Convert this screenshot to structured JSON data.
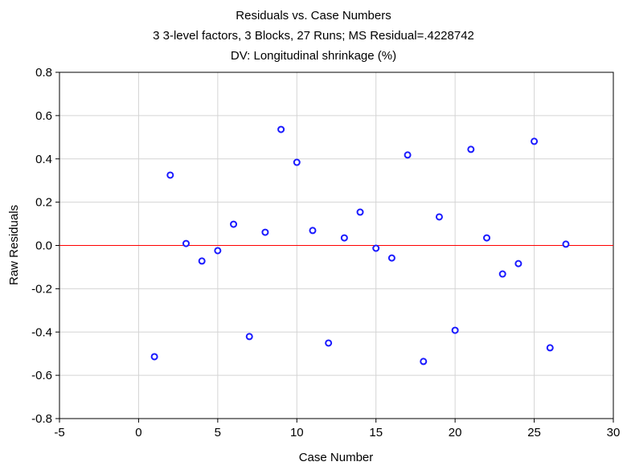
{
  "chart_data": {
    "type": "scatter",
    "title": "Residuals vs. Case Numbers",
    "subtitle": "3 3-level factors, 3 Blocks, 27 Runs; MS Residual=.4228742",
    "subtitle2": "DV: Longitudinal shrinkage (%)",
    "xlabel": "Case Number",
    "ylabel": "Raw Residuals",
    "xlim": [
      -5,
      30
    ],
    "ylim": [
      -0.8,
      0.8
    ],
    "xticks": [
      "-5",
      "0",
      "5",
      "10",
      "15",
      "20",
      "25",
      "30"
    ],
    "yticks": [
      "-0.8",
      "-0.6",
      "-0.4",
      "-0.2",
      "0.0",
      "0.2",
      "0.4",
      "0.6",
      "0.8"
    ],
    "grid": true,
    "reference_line": {
      "y": 0,
      "color": "#ff0000"
    },
    "marker_color": "#1a1aff",
    "x": [
      1,
      2,
      3,
      4,
      5,
      6,
      7,
      8,
      9,
      10,
      11,
      12,
      13,
      14,
      15,
      16,
      17,
      18,
      19,
      20,
      21,
      22,
      23,
      24,
      25,
      26,
      27
    ],
    "y": [
      -0.514,
      0.325,
      0.009,
      -0.072,
      -0.024,
      0.098,
      -0.421,
      0.061,
      0.536,
      0.384,
      0.069,
      -0.451,
      0.035,
      0.154,
      -0.013,
      -0.058,
      0.418,
      -0.536,
      0.132,
      -0.392,
      0.444,
      0.035,
      -0.132,
      -0.084,
      0.481,
      -0.473,
      0.006
    ]
  }
}
